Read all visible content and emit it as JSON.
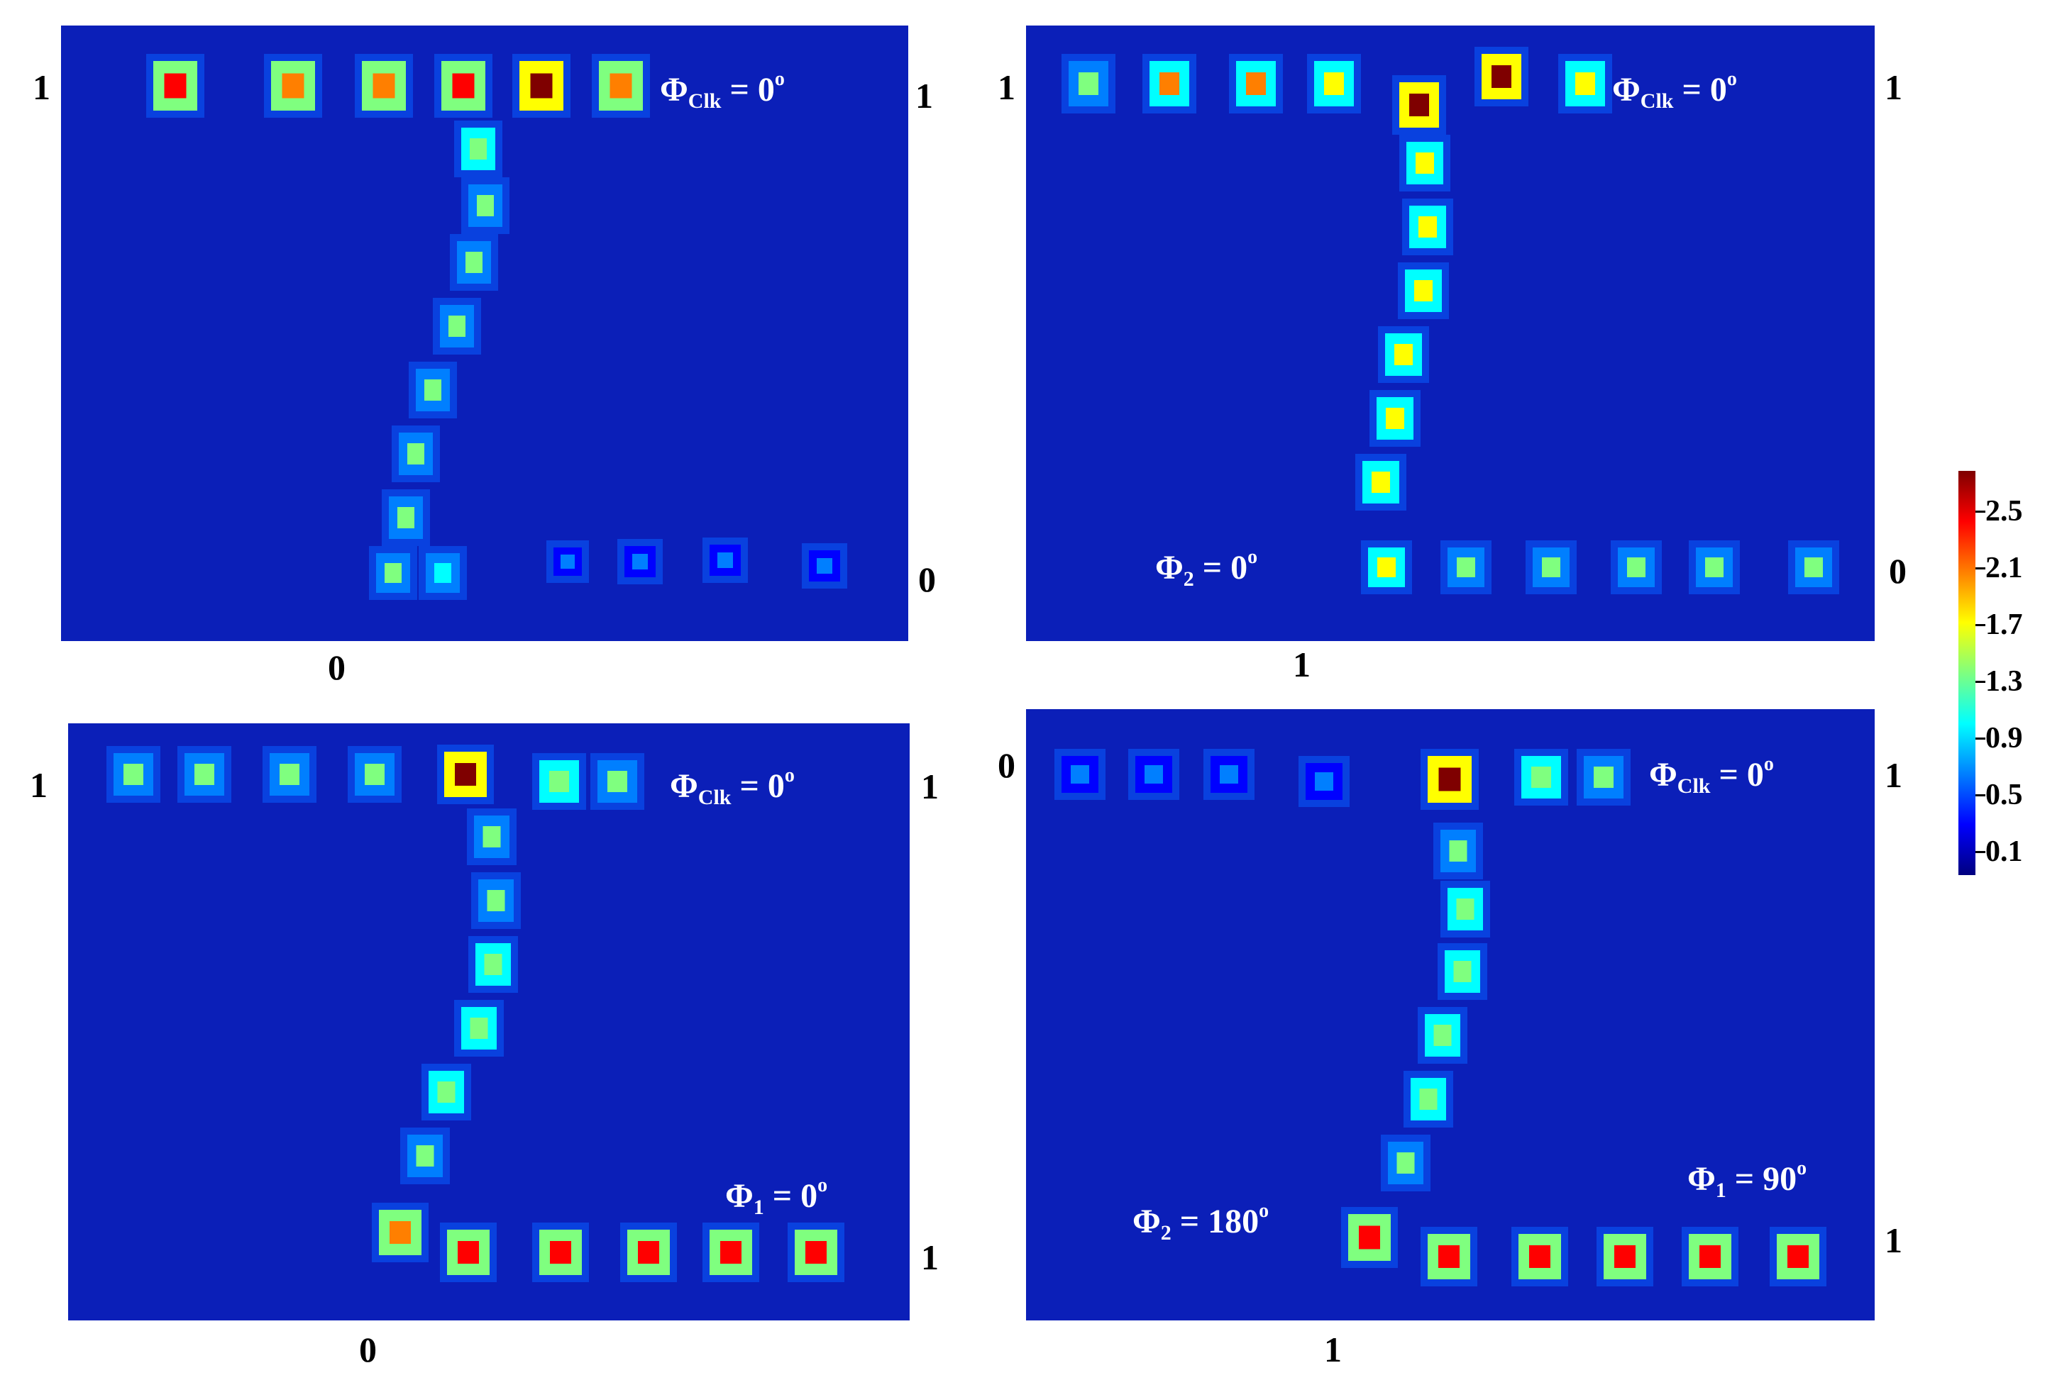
{
  "colormap": [
    "#00007f",
    "#0000ff",
    "#007fff",
    "#00ffff",
    "#7fff7f",
    "#ffff00",
    "#ff7f00",
    "#ff0000",
    "#7f0000"
  ],
  "panels": [
    {
      "id": "top-left",
      "clock_label": {
        "symbol": "Φ",
        "sub": "Clk",
        "eq": " = 0",
        "sup": "o"
      },
      "input_labels": {
        "left": "1",
        "bottom": "0"
      },
      "output_labels": {
        "top_right": "1",
        "bottom_right": "0"
      },
      "phase_labels": []
    },
    {
      "id": "top-right",
      "clock_label": {
        "symbol": "Φ",
        "sub": "Clk",
        "eq": " = 0",
        "sup": "o"
      },
      "input_labels": {
        "left": "1",
        "bottom": "1"
      },
      "output_labels": {
        "top_right": "1",
        "bottom_right": "0"
      },
      "phase_labels": [
        {
          "symbol": "Φ",
          "sub": "2",
          "eq": " = 0",
          "sup": "o"
        }
      ]
    },
    {
      "id": "bottom-left",
      "clock_label": {
        "symbol": "Φ",
        "sub": "Clk",
        "eq": " = 0",
        "sup": "o"
      },
      "input_labels": {
        "left": "1",
        "bottom": "0"
      },
      "output_labels": {
        "top_right": "1",
        "bottom_right": "1"
      },
      "phase_labels": [
        {
          "symbol": "Φ",
          "sub": "1",
          "eq": " = 0",
          "sup": "o"
        }
      ]
    },
    {
      "id": "bottom-right",
      "clock_label": {
        "symbol": "Φ",
        "sub": "Clk",
        "eq": " = 0",
        "sup": "o"
      },
      "input_labels": {
        "left": "0",
        "bottom": "1"
      },
      "output_labels": {
        "top_right": "1",
        "bottom_right": "1"
      },
      "phase_labels": [
        {
          "symbol": "Φ",
          "sub": "1",
          "eq": " = 90",
          "sup": "o"
        },
        {
          "symbol": "Φ",
          "sub": "2",
          "eq": " = 180",
          "sup": "o"
        }
      ]
    }
  ],
  "colorbar": {
    "ticks": [
      "2.5",
      "2.1",
      "1.7",
      "1.3",
      "0.9",
      "0.5",
      "0.1"
    ]
  }
}
